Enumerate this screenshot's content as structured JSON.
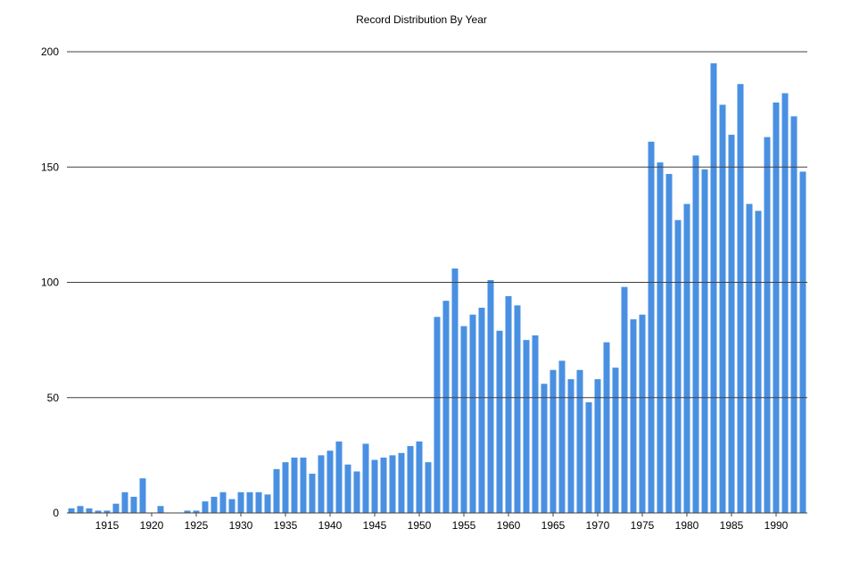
{
  "chart_data": {
    "type": "bar",
    "title": "Record Distribution By Year",
    "xlabel": "",
    "ylabel": "",
    "ylim": [
      0,
      200
    ],
    "yticks": [
      0,
      50,
      100,
      150,
      200
    ],
    "xticks": [
      1915,
      1920,
      1925,
      1930,
      1935,
      1940,
      1945,
      1950,
      1955,
      1960,
      1965,
      1970,
      1975,
      1980,
      1985,
      1990
    ],
    "grid": "horizontal",
    "legend": "none",
    "colors": {
      "bar": "#4a90e2",
      "gridline": "#404040",
      "text": "#000000",
      "background": "#ffffff"
    },
    "years": [
      1911,
      1912,
      1913,
      1914,
      1915,
      1916,
      1917,
      1918,
      1919,
      1920,
      1921,
      1922,
      1923,
      1924,
      1925,
      1926,
      1927,
      1928,
      1929,
      1930,
      1931,
      1932,
      1933,
      1934,
      1935,
      1936,
      1937,
      1938,
      1939,
      1940,
      1941,
      1942,
      1943,
      1944,
      1945,
      1946,
      1947,
      1948,
      1949,
      1950,
      1951,
      1952,
      1953,
      1954,
      1955,
      1956,
      1957,
      1958,
      1959,
      1960,
      1961,
      1962,
      1963,
      1964,
      1965,
      1966,
      1967,
      1968,
      1969,
      1970,
      1971,
      1972,
      1973,
      1974,
      1975,
      1976,
      1977,
      1978,
      1979,
      1980,
      1981,
      1982,
      1983,
      1984,
      1985,
      1986,
      1987,
      1988,
      1989,
      1990,
      1991,
      1992,
      1993
    ],
    "values": [
      2,
      3,
      2,
      1,
      1,
      4,
      9,
      7,
      15,
      0,
      3,
      0,
      0,
      1,
      1,
      5,
      7,
      9,
      6,
      9,
      9,
      9,
      8,
      19,
      22,
      24,
      24,
      17,
      25,
      27,
      31,
      21,
      18,
      30,
      23,
      24,
      25,
      26,
      29,
      31,
      22,
      85,
      92,
      106,
      81,
      86,
      89,
      101,
      79,
      94,
      90,
      75,
      77,
      56,
      62,
      66,
      58,
      62,
      48,
      58,
      74,
      63,
      98,
      84,
      86,
      161,
      152,
      147,
      127,
      134,
      155,
      149,
      195,
      177,
      164,
      186,
      134,
      131,
      163,
      178,
      182,
      172,
      148
    ]
  }
}
